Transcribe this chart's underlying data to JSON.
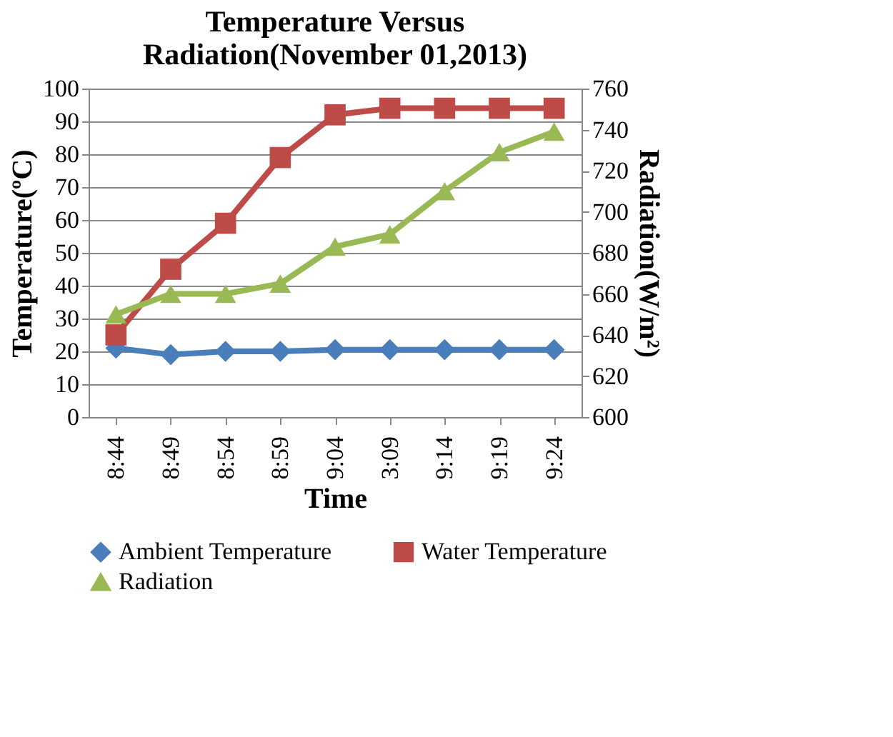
{
  "chart_data": {
    "type": "line",
    "title": "Temperature Versus Radiation(November 01,2013)",
    "xlabel": "Time",
    "ylabel": "Temperature(ºC)",
    "y2label": "Radiation(W/m²)",
    "categories": [
      "8:44",
      "8:49",
      "8:54",
      "8:59",
      "9:04",
      "3:09",
      "9:14",
      "9:19",
      "9:24"
    ],
    "series": [
      {
        "name": "Ambient Temperature",
        "color": "#4a7ebb",
        "marker": "diamond",
        "values": [
          21,
          19,
          20,
          20,
          20.5,
          20.5,
          20.5,
          20.5,
          20.5
        ]
      },
      {
        "name": "Water Temperature",
        "color": "#be4b48",
        "marker": "square",
        "values": [
          25,
          45,
          59,
          79,
          92,
          94,
          94,
          94,
          94
        ]
      },
      {
        "name": "Radiation",
        "color": "#98b954",
        "marker": "triangle",
        "axis": "y2",
        "values": [
          650,
          660,
          660,
          665,
          683,
          689,
          710,
          729,
          739
        ]
      }
    ],
    "ylim": [
      0,
      100
    ],
    "yticks": [
      0,
      10,
      20,
      30,
      40,
      50,
      60,
      70,
      80,
      90,
      100
    ],
    "y2lim": [
      600,
      760
    ],
    "y2ticks": [
      600,
      620,
      640,
      660,
      680,
      700,
      720,
      740,
      760
    ],
    "grid": "y",
    "legend": "bottom"
  }
}
